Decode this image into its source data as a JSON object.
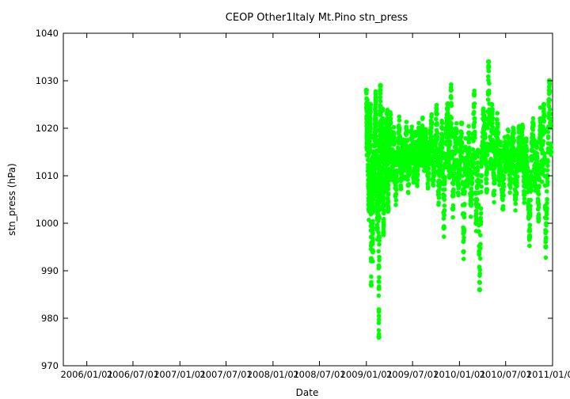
{
  "chart_data": {
    "type": "scatter",
    "title": "CEOP Other1Italy Mt.Pino  stn_press",
    "xlabel": "Date",
    "ylabel": "stn_press (hPa)",
    "ylim": [
      970,
      1040
    ],
    "xlim": [
      "2005-10-01",
      "2011-01-01"
    ],
    "y_ticks": [
      970,
      980,
      990,
      1000,
      1010,
      1020,
      1030,
      1040
    ],
    "x_ticks": [
      "2006/01/01",
      "2006/07/01",
      "2007/01/01",
      "2007/07/01",
      "2008/01/01",
      "2008/07/01",
      "2009/01/01",
      "2009/07/01",
      "2010/01/01",
      "2010/07/01",
      "2011/01/01"
    ],
    "grid": false,
    "legend": "none",
    "marker_color": "#00ff00",
    "series": [
      {
        "x": [
          "2009-01-01",
          "2009-01-03",
          "2009-01-05",
          "2009-01-08",
          "2009-01-11",
          "2009-01-14",
          "2009-01-17",
          "2009-01-20",
          "2009-01-23",
          "2009-01-26",
          "2009-01-29",
          "2009-02-01",
          "2009-02-04",
          "2009-02-07",
          "2009-02-10",
          "2009-02-13",
          "2009-02-16",
          "2009-02-19",
          "2009-02-22",
          "2009-02-25",
          "2009-02-28",
          "2009-03-03",
          "2009-03-06",
          "2009-03-09",
          "2009-03-12",
          "2009-03-15",
          "2009-03-18",
          "2009-03-21",
          "2009-03-24",
          "2009-03-27",
          "2009-03-30",
          "2009-04-05",
          "2009-04-12",
          "2009-04-19",
          "2009-04-26",
          "2009-05-03",
          "2009-05-10",
          "2009-05-17",
          "2009-05-24",
          "2009-05-31",
          "2009-06-07",
          "2009-06-14",
          "2009-06-21",
          "2009-06-28",
          "2009-07-05",
          "2009-07-12",
          "2009-07-19",
          "2009-07-26",
          "2009-08-02",
          "2009-08-09",
          "2009-08-16",
          "2009-08-23",
          "2009-08-30",
          "2009-09-06",
          "2009-09-13",
          "2009-09-20",
          "2009-09-27",
          "2009-10-04",
          "2009-10-11",
          "2009-10-18",
          "2009-10-25",
          "2009-11-01",
          "2009-11-08",
          "2009-11-15",
          "2009-11-22",
          "2009-11-29",
          "2009-12-06",
          "2009-12-13",
          "2009-12-20",
          "2009-12-27",
          "2010-01-03",
          "2010-01-10",
          "2010-01-17",
          "2010-01-24",
          "2010-01-31",
          "2010-02-07",
          "2010-02-14",
          "2010-02-21",
          "2010-02-28",
          "2010-03-07",
          "2010-03-14",
          "2010-03-21",
          "2010-03-28",
          "2010-04-04",
          "2010-04-11",
          "2010-04-18",
          "2010-04-25",
          "2010-05-02",
          "2010-05-09",
          "2010-05-16",
          "2010-05-23",
          "2010-05-30",
          "2010-06-06",
          "2010-06-13",
          "2010-06-20",
          "2010-06-27",
          "2010-07-04",
          "2010-07-11",
          "2010-07-18",
          "2010-07-25",
          "2010-08-01",
          "2010-08-08",
          "2010-08-15",
          "2010-08-22",
          "2010-08-29",
          "2010-09-05",
          "2010-09-12",
          "2010-09-19",
          "2010-09-26",
          "2010-10-03",
          "2010-10-10",
          "2010-10-17",
          "2010-10-24",
          "2010-10-31",
          "2010-11-07",
          "2010-11-14",
          "2010-11-21",
          "2010-11-28",
          "2010-12-05",
          "2010-12-12",
          "2010-12-19",
          "2010-12-26"
        ],
        "y": [
          1028,
          1016,
          1024,
          1011,
          1003,
          1020,
          1025,
          987,
          1013,
          994,
          1018,
          1007,
          1021,
          1026,
          1010,
          999,
          1017,
          976,
          1012,
          1029,
          1005,
          1015,
          1022,
          998,
          1011,
          1019,
          1008,
          1016,
          1023,
          1003,
          1013,
          1022,
          1011,
          1018,
          1006,
          1014,
          1020,
          1009,
          1016,
          1012,
          1019,
          1008,
          1015,
          1018,
          1011,
          1017,
          1010,
          1019,
          1014,
          1020,
          1013,
          1018,
          1010,
          1016,
          1021,
          1009,
          1015,
          1023,
          1006,
          1014,
          1020,
          999,
          1017,
          1024,
          1011,
          1028,
          1003,
          1015,
          1019,
          1008,
          1013,
          1021,
          994,
          1016,
          1009,
          1019,
          1004,
          1012,
          1027,
          1000,
          1015,
          986,
          1010,
          1022,
          1018,
          1007,
          1034,
          1013,
          1024,
          1006,
          1017,
          1021,
          1009,
          1015,
          1003,
          1016,
          1012,
          1018,
          1008,
          1014,
          1019,
          1005,
          1011,
          1018,
          1013,
          1020,
          1006,
          1016,
          1009,
          997,
          1014,
          1021,
          1008,
          1016,
          1001,
          1022,
          1011,
          1025,
          995,
          1010,
          1030,
          1015
        ]
      }
    ]
  }
}
